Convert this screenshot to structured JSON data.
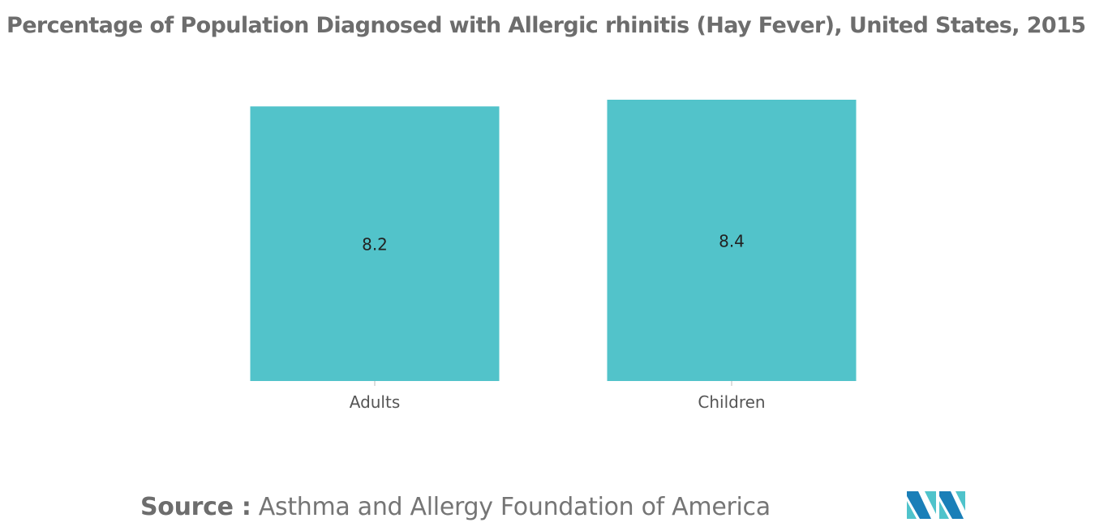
{
  "title": "Percentage of Population Diagnosed with Allergic rhinitis (Hay Fever), United States, 2015",
  "source": {
    "label": "Source :",
    "text": " Asthma and Allergy Foundation of America"
  },
  "logo": {
    "icon": "mordor-intelligence-logo-icon",
    "colors": [
      "#1a7fb8",
      "#4fc3cb"
    ]
  },
  "colors": {
    "bar": "#52c3ca",
    "axis_text": "#555555",
    "label_text": "#222222"
  },
  "chart_data": {
    "type": "bar",
    "title": "Percentage of Population Diagnosed with Allergic rhinitis (Hay Fever), United States, 2015",
    "categories": [
      "Adults",
      "Children"
    ],
    "values": [
      8.2,
      8.4
    ],
    "xlabel": "",
    "ylabel": "",
    "ylim": [
      0,
      8.4
    ],
    "grid": false,
    "data_labels": [
      "8.2",
      "8.4"
    ]
  }
}
